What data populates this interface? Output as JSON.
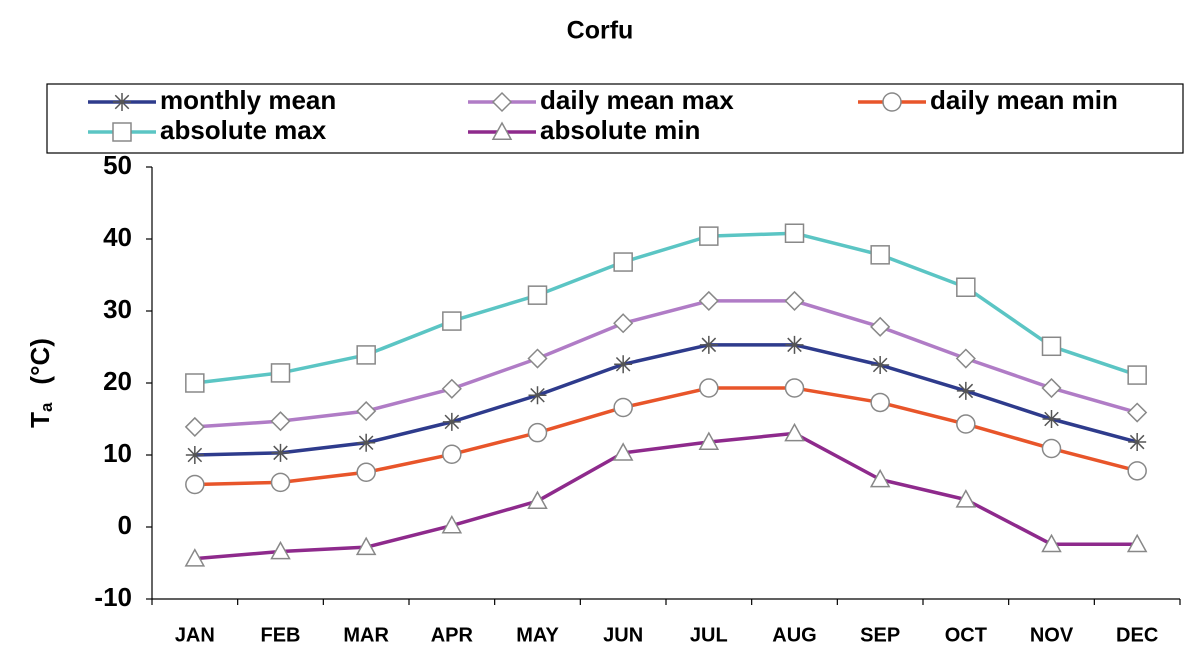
{
  "chart_data": {
    "type": "line",
    "title": "Corfu",
    "ylabel_symbol": "T",
    "ylabel_subscript": "a",
    "ylabel_unit": "(°C)",
    "categories": [
      "JAN",
      "FEB",
      "MAR",
      "APR",
      "MAY",
      "JUN",
      "JUL",
      "AUG",
      "SEP",
      "OCT",
      "NOV",
      "DEC"
    ],
    "ylim": [
      -10,
      50
    ],
    "yticks": [
      -10,
      0,
      10,
      20,
      30,
      40,
      50
    ],
    "legend": "top",
    "series": [
      {
        "name": "monthly mean",
        "color": "#2e3b8c",
        "marker": "star",
        "values": [
          10.0,
          10.3,
          11.7,
          14.6,
          18.3,
          22.6,
          25.3,
          25.3,
          22.5,
          18.9,
          15.0,
          11.8
        ]
      },
      {
        "name": "daily mean max",
        "color": "#b07cc6",
        "marker": "diamond",
        "values": [
          13.9,
          14.7,
          16.1,
          19.2,
          23.4,
          28.3,
          31.4,
          31.4,
          27.8,
          23.4,
          19.3,
          15.9
        ]
      },
      {
        "name": "daily mean min",
        "color": "#e8552a",
        "marker": "circle",
        "values": [
          5.9,
          6.2,
          7.6,
          10.1,
          13.1,
          16.6,
          19.3,
          19.3,
          17.3,
          14.3,
          10.9,
          7.8
        ]
      },
      {
        "name": "absolute max",
        "color": "#5bc5c4",
        "marker": "square",
        "values": [
          20.0,
          21.4,
          23.9,
          28.6,
          32.2,
          36.8,
          40.4,
          40.8,
          37.8,
          33.3,
          25.1,
          21.1
        ]
      },
      {
        "name": "absolute min",
        "color": "#8e2a8c",
        "marker": "triangle",
        "values": [
          -4.4,
          -3.4,
          -2.8,
          0.2,
          3.6,
          10.3,
          11.8,
          13.0,
          6.6,
          3.8,
          -2.4,
          -2.4
        ]
      }
    ]
  }
}
